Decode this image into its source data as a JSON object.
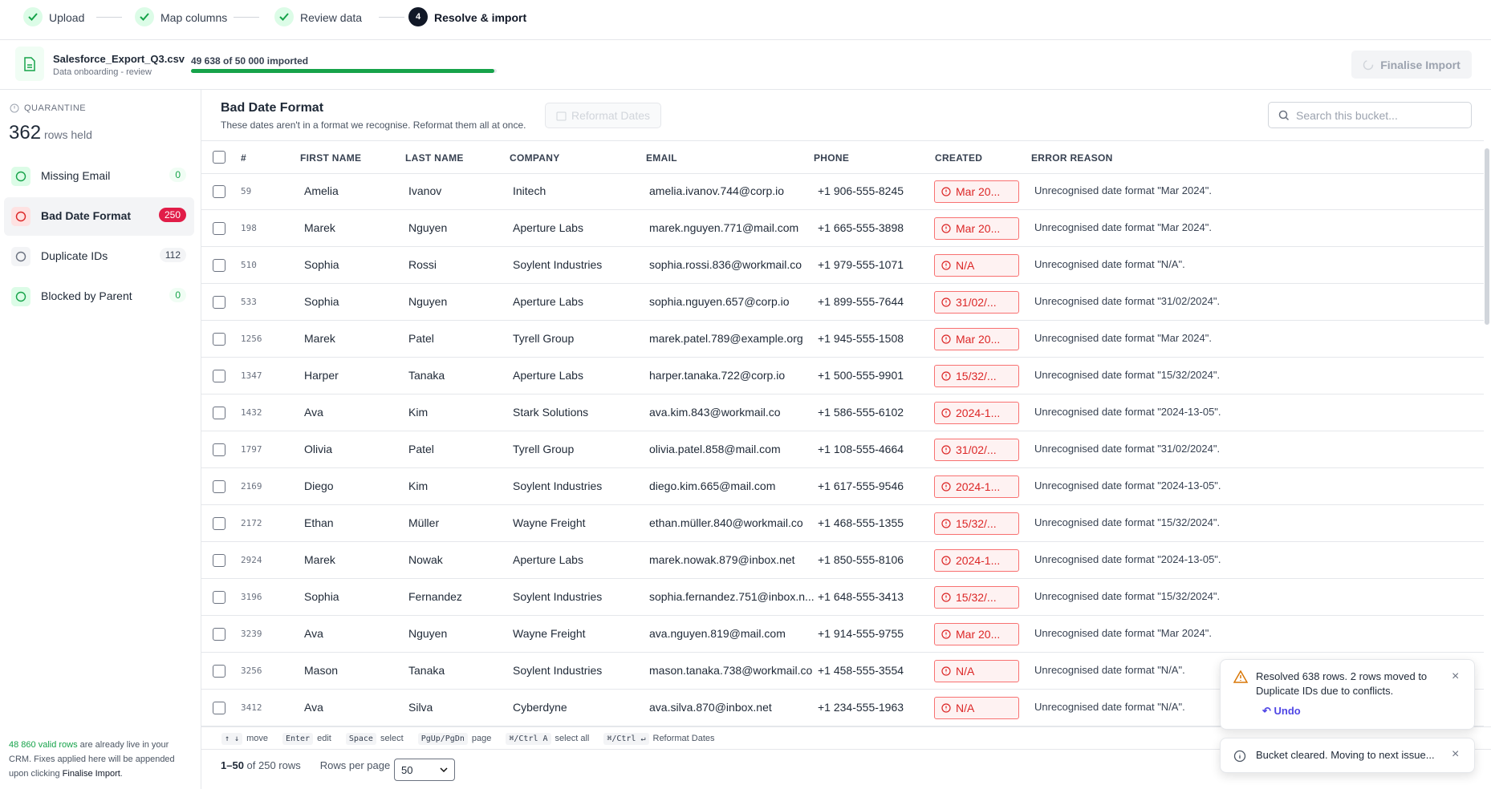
{
  "steps": [
    "Upload",
    "Map columns",
    "Review data",
    "Resolve & import"
  ],
  "current_step": "4",
  "file": {
    "name": "Salesforce_Export_Q3.csv",
    "subtitle": "Data onboarding - review"
  },
  "progress": {
    "label": "49 638 of 50 000 imported",
    "value": 49638,
    "total": 50000
  },
  "finalise_button": "Finalise Import",
  "sidebar": {
    "label": "QUARANTINE",
    "count": "362",
    "count_unit": "rows held",
    "buckets": [
      {
        "name": "Missing Email",
        "count": "0"
      },
      {
        "name": "Bad Date Format",
        "count": "250"
      },
      {
        "name": "Duplicate IDs",
        "count": "112"
      },
      {
        "name": "Blocked by Parent",
        "count": "0"
      }
    ],
    "note": {
      "highlight": "48 860 valid rows",
      "text": " are already live in your CRM. Fixes applied here will be appended upon clicking ",
      "action": "Finalise Import",
      "end": "."
    }
  },
  "bucket": {
    "title": "Bad Date Format",
    "description": "These dates aren't in a format we recognise. Reformat them all at once.",
    "button": "Reformat Dates",
    "search_placeholder": "Search this bucket..."
  },
  "table": {
    "columns": [
      "#",
      "FIRST NAME",
      "LAST NAME",
      "COMPANY",
      "EMAIL",
      "PHONE",
      "CREATED",
      "ERROR REASON"
    ],
    "rows": [
      [
        "59",
        "Amelia",
        "Ivanov",
        "Initech",
        "amelia.ivanov.744@corp.io",
        "+1 906-555-8245",
        "Mar 20...",
        "Unrecognised date format \"Mar 2024\"."
      ],
      [
        "198",
        "Marek",
        "Nguyen",
        "Aperture Labs",
        "marek.nguyen.771@mail.com",
        "+1 665-555-3898",
        "Mar 20...",
        "Unrecognised date format \"Mar 2024\"."
      ],
      [
        "510",
        "Sophia",
        "Rossi",
        "Soylent Industries",
        "sophia.rossi.836@workmail.co",
        "+1 979-555-1071",
        "N/A",
        "Unrecognised date format \"N/A\"."
      ],
      [
        "533",
        "Sophia",
        "Nguyen",
        "Aperture Labs",
        "sophia.nguyen.657@corp.io",
        "+1 899-555-7644",
        "31/02/...",
        "Unrecognised date format \"31/02/2024\"."
      ],
      [
        "1256",
        "Marek",
        "Patel",
        "Tyrell Group",
        "marek.patel.789@example.org",
        "+1 945-555-1508",
        "Mar 20...",
        "Unrecognised date format \"Mar 2024\"."
      ],
      [
        "1347",
        "Harper",
        "Tanaka",
        "Aperture Labs",
        "harper.tanaka.722@corp.io",
        "+1 500-555-9901",
        "15/32/...",
        "Unrecognised date format \"15/32/2024\"."
      ],
      [
        "1432",
        "Ava",
        "Kim",
        "Stark Solutions",
        "ava.kim.843@workmail.co",
        "+1 586-555-6102",
        "2024-1...",
        "Unrecognised date format \"2024-13-05\"."
      ],
      [
        "1797",
        "Olivia",
        "Patel",
        "Tyrell Group",
        "olivia.patel.858@mail.com",
        "+1 108-555-4664",
        "31/02/...",
        "Unrecognised date format \"31/02/2024\"."
      ],
      [
        "2169",
        "Diego",
        "Kim",
        "Soylent Industries",
        "diego.kim.665@mail.com",
        "+1 617-555-9546",
        "2024-1...",
        "Unrecognised date format \"2024-13-05\"."
      ],
      [
        "2172",
        "Ethan",
        "Müller",
        "Wayne Freight",
        "ethan.müller.840@workmail.co",
        "+1 468-555-1355",
        "15/32/...",
        "Unrecognised date format \"15/32/2024\"."
      ],
      [
        "2924",
        "Marek",
        "Nowak",
        "Aperture Labs",
        "marek.nowak.879@inbox.net",
        "+1 850-555-8106",
        "2024-1...",
        "Unrecognised date format \"2024-13-05\"."
      ],
      [
        "3196",
        "Sophia",
        "Fernandez",
        "Soylent Industries",
        "sophia.fernandez.751@inbox.n...",
        "+1 648-555-3413",
        "15/32/...",
        "Unrecognised date format \"15/32/2024\"."
      ],
      [
        "3239",
        "Ava",
        "Nguyen",
        "Wayne Freight",
        "ava.nguyen.819@mail.com",
        "+1 914-555-9755",
        "Mar 20...",
        "Unrecognised date format \"Mar 2024\"."
      ],
      [
        "3256",
        "Mason",
        "Tanaka",
        "Soylent Industries",
        "mason.tanaka.738@workmail.co",
        "+1 458-555-3554",
        "N/A",
        "Unrecognised date format \"N/A\"."
      ],
      [
        "3412",
        "Ava",
        "Silva",
        "Cyberdyne",
        "ava.silva.870@inbox.net",
        "+1 234-555-1963",
        "N/A",
        "Unrecognised date format \"N/A\"."
      ]
    ]
  },
  "shortcuts": [
    {
      "key": "↑ ↓",
      "label": "move"
    },
    {
      "key": "Enter",
      "label": "edit"
    },
    {
      "key": "Space",
      "label": "select"
    },
    {
      "key": "PgUp/PgDn",
      "label": "page"
    },
    {
      "key": "⌘/Ctrl A",
      "label": "select all"
    },
    {
      "key": "⌘/Ctrl ↵",
      "label": "Reformat Dates"
    }
  ],
  "pagination": {
    "range": "1–50",
    "total": "of 250 rows",
    "rows_per_page_label": "Rows per page",
    "rows_per_page": "50"
  },
  "toasts": [
    {
      "message": "Resolved 638 rows. 2 rows moved to Duplicate IDs due to conflicts.",
      "action": "Undo"
    },
    {
      "message": "Bucket cleared. Moving to next issue..."
    }
  ]
}
